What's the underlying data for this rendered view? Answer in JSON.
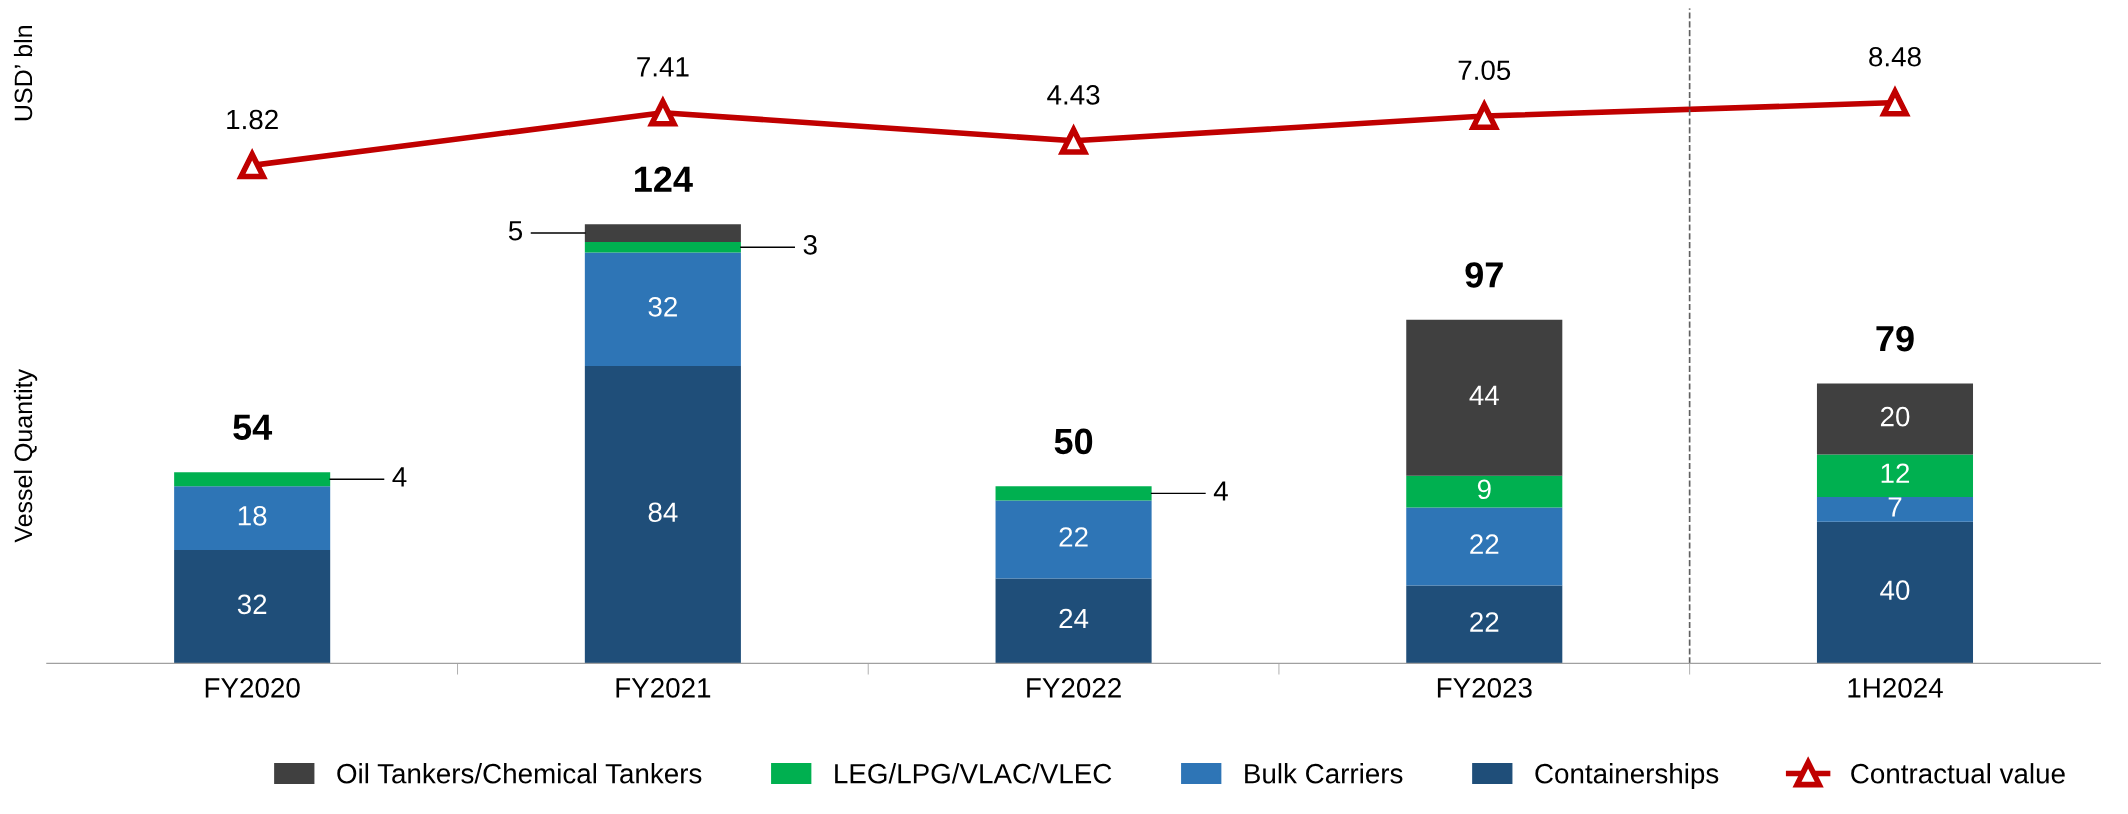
{
  "chart_data": {
    "type": "bar",
    "stacked": true,
    "categories": [
      "FY2020",
      "FY2021",
      "FY2022",
      "FY2023",
      "1H2024"
    ],
    "ylabel": "Vessel Quantity",
    "y2label": "USD’ bln",
    "ylim": [
      0,
      185
    ],
    "y2lim": [
      -51,
      18.5
    ],
    "tick_labels": "x",
    "data_labels": true,
    "totals": [
      "54",
      "124",
      "50",
      "97",
      "79"
    ],
    "legend": "bottom",
    "grid": false,
    "series": [
      {
        "name": "Containerships",
        "color": "#1f4e79",
        "values": [
          32,
          84,
          24,
          22,
          40
        ]
      },
      {
        "name": "Bulk Carriers",
        "color": "#2e75b6",
        "values": [
          18,
          32,
          22,
          22,
          7
        ]
      },
      {
        "name": "LEG/LPG/VLAC/VLEC",
        "color": "#00b050",
        "values": [
          4,
          3,
          4,
          9,
          12
        ]
      },
      {
        "name": "Oil Tankers/Chemical Tankers",
        "color": "#404040",
        "values": [
          null,
          5,
          null,
          44,
          20
        ]
      },
      {
        "name": "Contractual value",
        "type": "line",
        "axis": "y2",
        "color": "#c00000",
        "marker": "triangle",
        "line_style": "solid",
        "values": [
          1.82,
          7.41,
          4.43,
          7.05,
          8.48
        ]
      }
    ]
  }
}
